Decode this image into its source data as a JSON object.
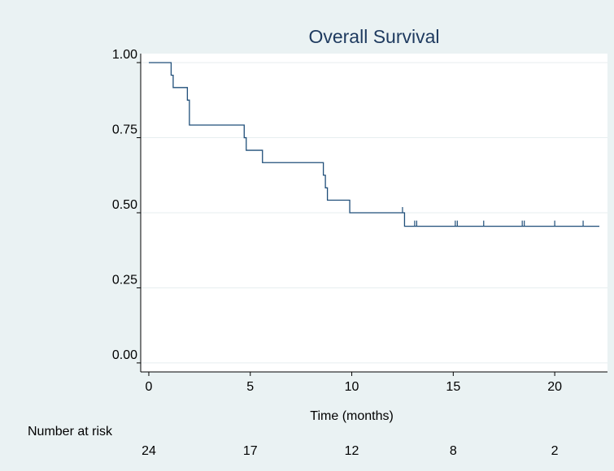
{
  "colors": {
    "background": "#eaf2f3",
    "plot_area": "#ffffff",
    "curve": "#1f4e79",
    "grid": "#e7eeef",
    "title": "#1e3a5f"
  },
  "chart_data": {
    "type": "line",
    "title": "Overall Survival",
    "xlabel": "Time (months)",
    "ylabel": "",
    "xlim": [
      -0.4,
      22.6
    ],
    "ylim": [
      -0.03,
      1.03
    ],
    "xticks": [
      0,
      5,
      10,
      15,
      20
    ],
    "xtick_labels": [
      "0",
      "5",
      "10",
      "15",
      "20"
    ],
    "yticks": [
      0,
      0.25,
      0.5,
      0.75,
      1.0
    ],
    "ytick_labels": [
      "0.00",
      "0.25",
      "0.50",
      "0.75",
      "1.00"
    ],
    "grid": true,
    "legend": "none",
    "series": [
      {
        "step": true,
        "x": [
          0,
          1.1,
          1.2,
          1.9,
          2.0,
          4.7,
          4.8,
          5.6,
          8.6,
          8.7,
          8.8,
          9.9,
          12.6,
          22.2
        ],
        "y": [
          1.0,
          0.958,
          0.917,
          0.875,
          0.792,
          0.75,
          0.708,
          0.667,
          0.625,
          0.583,
          0.542,
          0.5,
          0.455,
          0.455
        ],
        "censor_x": [
          12.5,
          13.1,
          13.2,
          15.1,
          15.2,
          16.5,
          18.4,
          18.5,
          20.0,
          21.4
        ]
      }
    ],
    "risk_table": {
      "label": "Number at risk",
      "times": [
        0,
        5,
        10,
        15,
        20
      ],
      "counts": [
        "24",
        "17",
        "12",
        "8",
        "2"
      ]
    }
  }
}
